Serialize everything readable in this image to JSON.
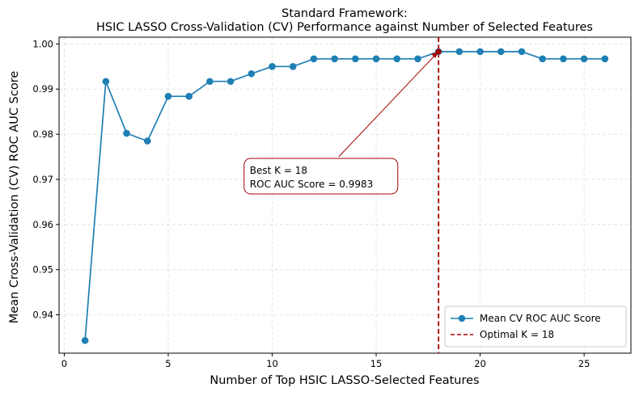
{
  "chart_data": {
    "type": "line",
    "title_line1": "Standard Framework:",
    "title_line2": "HSIC LASSO Cross-Validation (CV) Performance against Number of Selected Features",
    "xlabel": "Number of Top HSIC LASSO-Selected Features",
    "ylabel": "Mean Cross-Validation (CV) ROC AUC Score",
    "xlim": [
      -0.25,
      27.25
    ],
    "ylim": [
      0.9315,
      1.0015
    ],
    "x_ticks": [
      0,
      5,
      10,
      15,
      20,
      25
    ],
    "x_tick_labels": [
      "0",
      "5",
      "10",
      "15",
      "20",
      "25"
    ],
    "y_ticks": [
      0.94,
      0.95,
      0.96,
      0.97,
      0.98,
      0.99,
      1.0
    ],
    "y_tick_labels": [
      "0.94",
      "0.95",
      "0.96",
      "0.97",
      "0.98",
      "0.99",
      "1.00"
    ],
    "grid": true,
    "series": [
      {
        "name": "Mean CV ROC AUC Score",
        "color": "#1f7fb4",
        "x": [
          1,
          2,
          3,
          4,
          5,
          6,
          7,
          8,
          9,
          10,
          11,
          12,
          13,
          14,
          15,
          16,
          17,
          18,
          19,
          20,
          21,
          22,
          23,
          24,
          25,
          26
        ],
        "y": [
          0.9343,
          0.9917,
          0.9802,
          0.9785,
          0.9884,
          0.9884,
          0.9917,
          0.9917,
          0.9934,
          0.995,
          0.995,
          0.9967,
          0.9967,
          0.9967,
          0.9967,
          0.9967,
          0.9967,
          0.9983,
          0.9983,
          0.9983,
          0.9983,
          0.9983,
          0.9967,
          0.9967,
          0.9967,
          0.9967
        ]
      }
    ],
    "vline": {
      "name": "Optimal K = 18",
      "x": 18,
      "color": "#a50000",
      "style": "dashed"
    },
    "highlight_point": {
      "x": 18,
      "y": 0.9983,
      "color": "#a50000"
    },
    "annotation": {
      "line1": "Best K = 18",
      "line2": "ROC AUC Score = 0.9983",
      "target": [
        18,
        0.9983
      ],
      "text_anchor": [
        13.2,
        0.975
      ],
      "color": "#a50000"
    },
    "legend": {
      "position": "lower-right",
      "entries": [
        "Mean CV ROC AUC Score",
        "Optimal K = 18"
      ]
    }
  }
}
